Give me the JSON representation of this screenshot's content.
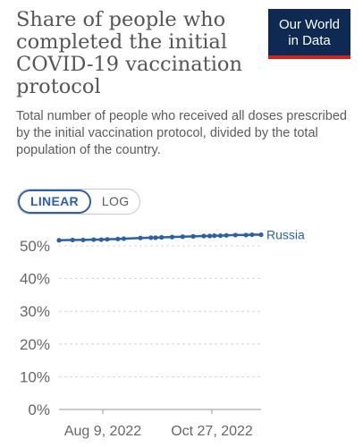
{
  "header": {
    "title": "Share of people who completed the initial COVID-19 vaccination protocol",
    "subtitle": "Total number of people who received all doses prescribed by the initial vaccination protocol, divided by the total population of the country.",
    "logo_line1": "Our World",
    "logo_line2": "in Data"
  },
  "controls": {
    "linear_label": "LINEAR",
    "log_label": "LOG",
    "selected": "linear"
  },
  "colors": {
    "series": "#2b5fa8",
    "logo_bg": "#0f2a52",
    "logo_accent": "#ce261e"
  },
  "chart_data": {
    "type": "line",
    "title": "Share of people who completed the initial COVID-19 vaccination protocol",
    "xlabel": "",
    "ylabel": "",
    "yticks": [
      "0%",
      "10%",
      "20%",
      "30%",
      "40%",
      "50%"
    ],
    "ylim": [
      0,
      50
    ],
    "xticks": [
      "Aug 9, 2022",
      "Oct 27, 2022"
    ],
    "xlim": [
      "2022-07-08",
      "2022-11-19"
    ],
    "grid": true,
    "series": [
      {
        "name": "Russia",
        "x": [
          "2022-07-08",
          "2022-07-17",
          "2022-07-24",
          "2022-07-31",
          "2022-08-05",
          "2022-08-09",
          "2022-08-16",
          "2022-08-20",
          "2022-08-31",
          "2022-09-07",
          "2022-09-10",
          "2022-09-14",
          "2022-09-21",
          "2022-09-28",
          "2022-10-05",
          "2022-10-12",
          "2022-10-16",
          "2022-10-19",
          "2022-10-23",
          "2022-10-27",
          "2022-11-02",
          "2022-11-09",
          "2022-11-13",
          "2022-11-19"
        ],
        "y": [
          51.7,
          51.8,
          51.8,
          51.9,
          51.9,
          52.0,
          52.1,
          52.2,
          52.4,
          52.5,
          52.5,
          52.6,
          52.7,
          52.8,
          52.9,
          53.0,
          53.0,
          53.1,
          53.1,
          53.2,
          53.3,
          53.3,
          53.4,
          53.4
        ]
      }
    ]
  }
}
